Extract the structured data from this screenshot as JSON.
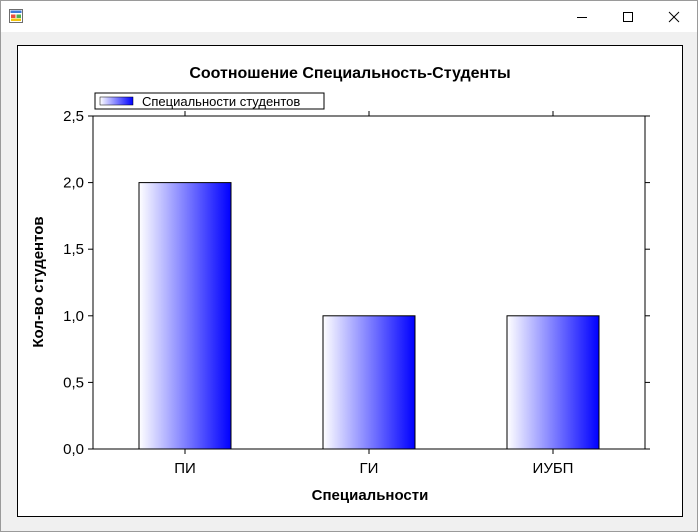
{
  "window": {
    "icon": "winforms-app-icon",
    "controls": [
      "minimize-icon",
      "maximize-icon",
      "close-icon"
    ]
  },
  "chart_data": {
    "type": "bar",
    "title": "Соотношение Специальность-Студенты",
    "xlabel": "Специальности",
    "ylabel": "Кол-во студентов",
    "categories": [
      "ПИ",
      "ГИ",
      "ИУБП"
    ],
    "series": [
      {
        "name": "Специальности студентов",
        "values": [
          2,
          1,
          1
        ]
      }
    ],
    "ylim": [
      0,
      2.5
    ],
    "yticks": [
      "0,0",
      "0,5",
      "1,0",
      "1,5",
      "2,0",
      "2,5"
    ],
    "grid": false,
    "legend_position": "top-left",
    "bar_color_start": "#ffffff",
    "bar_color_end": "#0000ff"
  }
}
